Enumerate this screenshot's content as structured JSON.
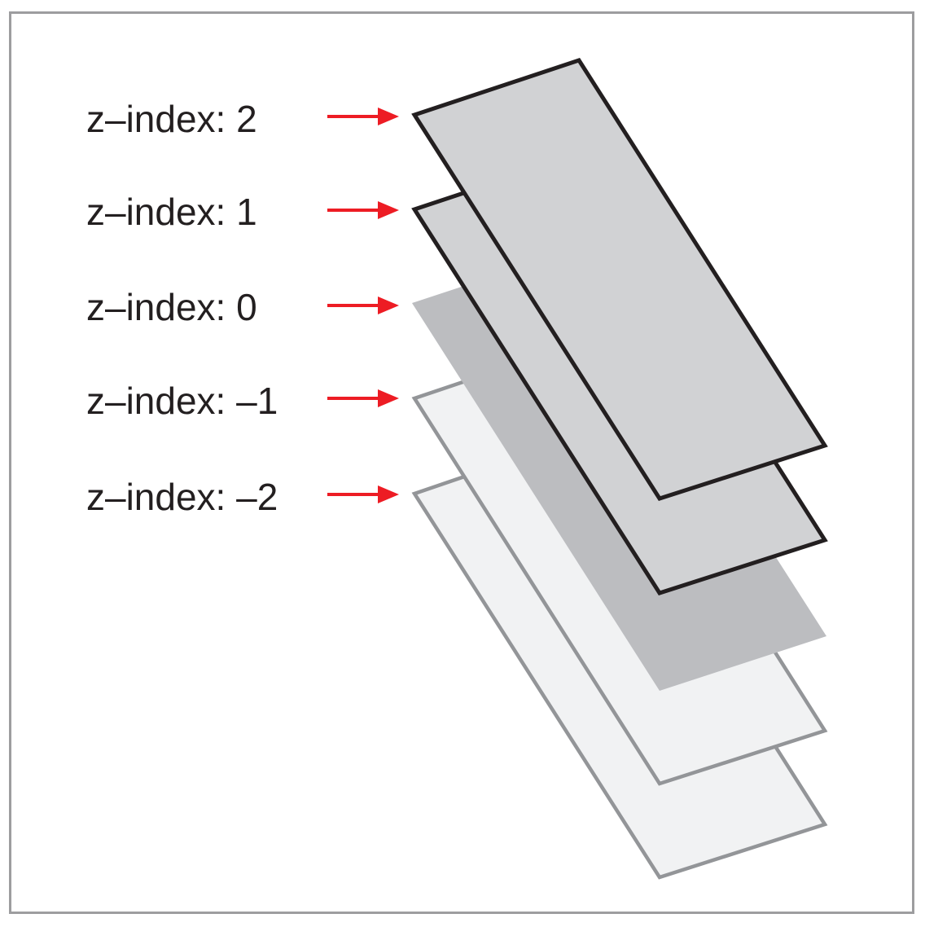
{
  "layers": [
    {
      "id": "layer-z2",
      "label": "z–index: 2",
      "fill": "#d1d2d4",
      "stroke": "#231f20"
    },
    {
      "id": "layer-z1",
      "label": "z–index: 1",
      "fill": "#d1d2d4",
      "stroke": "#231f20"
    },
    {
      "id": "layer-z0",
      "label": "z–index: 0",
      "fill": "#bcbdc0",
      "stroke": "none"
    },
    {
      "id": "layer-zm1",
      "label": "z–index: –1",
      "fill": "#f1f2f3",
      "stroke": "#939598"
    },
    {
      "id": "layer-zm2",
      "label": "z–index: –2",
      "fill": "#f1f2f3",
      "stroke": "#939598"
    }
  ],
  "colors": {
    "arrow": "#ed1c24",
    "frame": "#9d9d9f"
  },
  "icons": {
    "arrow": "arrow-right-icon"
  }
}
